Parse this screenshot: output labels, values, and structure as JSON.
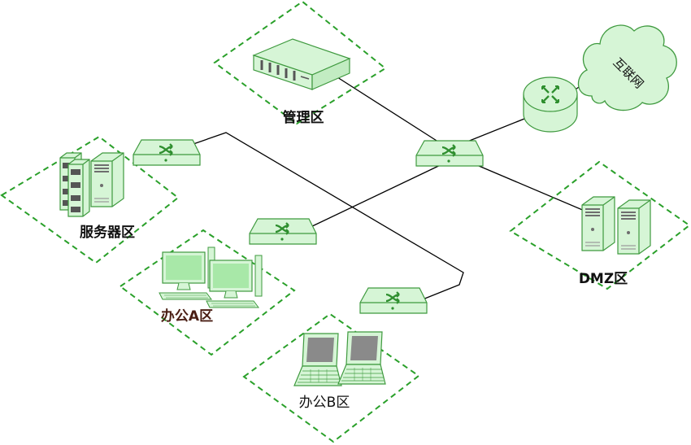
{
  "colors": {
    "zone_border": "#2aa02a",
    "device_fill": "#d6f5d6",
    "device_stroke": "#3f9a3f",
    "switch_icon": "#2f8f2f",
    "wire": "#000000",
    "label_dark": "#111111",
    "label_brown": "#4a1e14"
  },
  "labels": {
    "internet": "互联网",
    "management": "管理区",
    "server": "服务器区",
    "office_a": "办公A区",
    "office_b": "办公B区",
    "dmz": "DMZ区"
  },
  "icons": [
    "cloud-icon",
    "router-icon",
    "switch-icon",
    "rack-server-icon",
    "tower-server-icon",
    "desktop-pc-icon",
    "laptop-icon"
  ]
}
